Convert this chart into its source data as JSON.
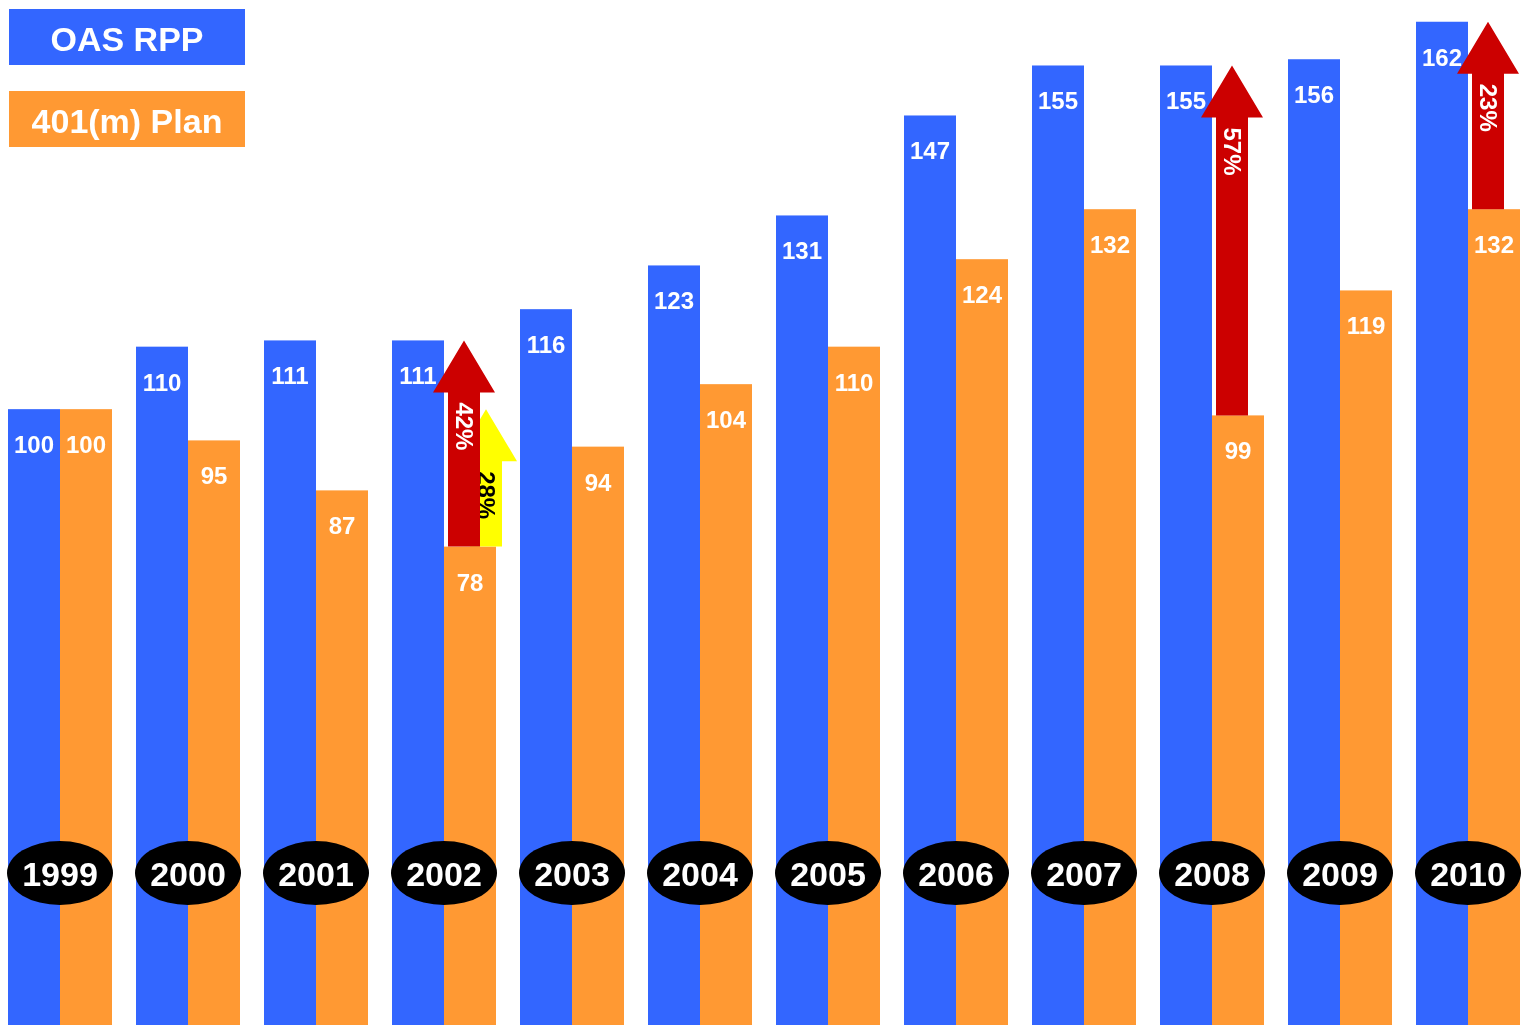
{
  "chart_data": {
    "type": "bar",
    "categories": [
      "1999",
      "2000",
      "2001",
      "2002",
      "2003",
      "2004",
      "2005",
      "2006",
      "2007",
      "2008",
      "2009",
      "2010"
    ],
    "series": [
      {
        "name": "OAS RPP",
        "color": "#3366ff",
        "values": [
          100,
          110,
          111,
          111,
          116,
          123,
          131,
          147,
          155,
          155,
          156,
          162
        ]
      },
      {
        "name": "401(m) Plan",
        "color": "#ff9933",
        "values": [
          100,
          95,
          87,
          78,
          94,
          104,
          110,
          124,
          132,
          99,
          119,
          132
        ]
      }
    ],
    "ylim": [
      0,
      165
    ],
    "data_labels": true,
    "legend": "top left",
    "annotations": [
      {
        "text": "42%",
        "x": "2002",
        "y": 111
      },
      {
        "text": "28%",
        "x": "2002",
        "y": 100
      },
      {
        "text": "57%",
        "x": "2008",
        "y": 155
      },
      {
        "text": "23%",
        "x": "2010",
        "y": 162
      }
    ]
  }
}
